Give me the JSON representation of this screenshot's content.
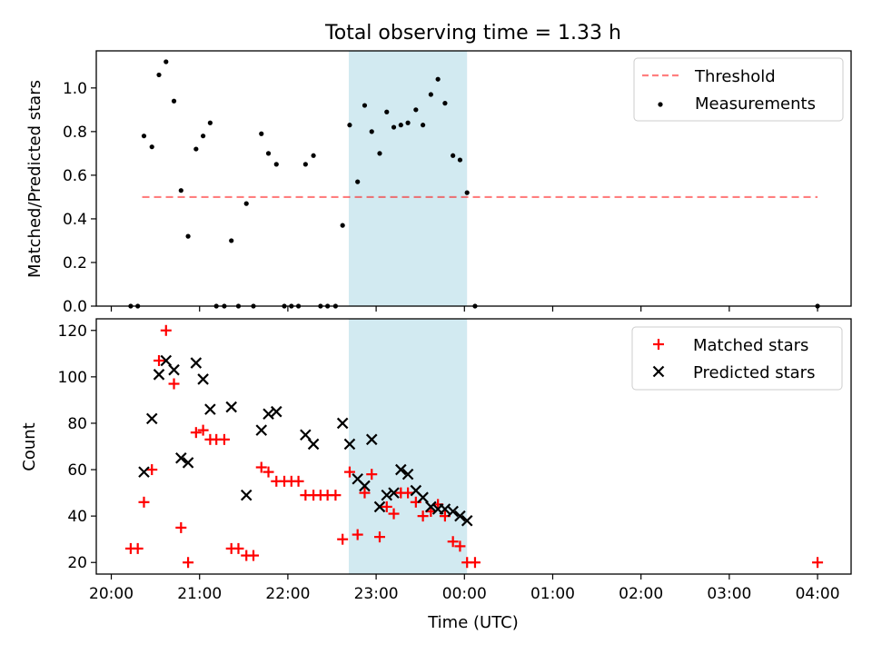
{
  "chart_data": [
    {
      "type": "scatter",
      "title": "Total observing time = 1.33 h",
      "xlabel": "",
      "ylabel": "Matched/Predicted stars",
      "ylim": [
        0,
        1.17
      ],
      "yticks": [
        "0.0",
        "0.2",
        "0.4",
        "0.6",
        "0.8",
        "1.0"
      ],
      "grid": false,
      "legend_position": "top-right",
      "highlight_span": {
        "x0": 22.69,
        "x1": 24.03,
        "color": "#add8e6"
      },
      "threshold": {
        "name": "Threshold",
        "y": 0.5,
        "x": [
          20.35,
          28.0
        ],
        "color": "#ff0000"
      },
      "series": [
        {
          "name": "Measurements",
          "color": "#000000",
          "points": [
            [
              20.22,
              0
            ],
            [
              20.3,
              0
            ],
            [
              20.37,
              0.78
            ],
            [
              20.46,
              0.73
            ],
            [
              20.54,
              1.06
            ],
            [
              20.62,
              1.12
            ],
            [
              20.71,
              0.94
            ],
            [
              20.79,
              0.53
            ],
            [
              20.87,
              0.32
            ],
            [
              20.96,
              0.72
            ],
            [
              21.04,
              0.78
            ],
            [
              21.12,
              0.84
            ],
            [
              21.19,
              0
            ],
            [
              21.28,
              0
            ],
            [
              21.36,
              0.3
            ],
            [
              21.44,
              0
            ],
            [
              21.53,
              0.47
            ],
            [
              21.61,
              0
            ],
            [
              21.7,
              0.79
            ],
            [
              21.78,
              0.7
            ],
            [
              21.87,
              0.65
            ],
            [
              21.96,
              0
            ],
            [
              22.04,
              0
            ],
            [
              22.12,
              0
            ],
            [
              22.2,
              0.65
            ],
            [
              22.29,
              0.69
            ],
            [
              22.37,
              0
            ],
            [
              22.45,
              0
            ],
            [
              22.54,
              0
            ],
            [
              22.62,
              0.37
            ],
            [
              22.7,
              0.83
            ],
            [
              22.79,
              0.57
            ],
            [
              22.87,
              0.92
            ],
            [
              22.95,
              0.8
            ],
            [
              23.04,
              0.7
            ],
            [
              23.12,
              0.89
            ],
            [
              23.2,
              0.82
            ],
            [
              23.28,
              0.83
            ],
            [
              23.36,
              0.84
            ],
            [
              23.45,
              0.9
            ],
            [
              23.53,
              0.83
            ],
            [
              23.62,
              0.97
            ],
            [
              23.7,
              1.04
            ],
            [
              23.78,
              0.93
            ],
            [
              23.87,
              0.69
            ],
            [
              23.95,
              0.67
            ],
            [
              24.03,
              0.52
            ],
            [
              24.12,
              0
            ],
            [
              28.0,
              0
            ]
          ]
        }
      ]
    },
    {
      "type": "scatter",
      "title": "",
      "xlabel": "Time (UTC)",
      "ylabel": "Count",
      "ylim": [
        15,
        125
      ],
      "yticks": [
        "20",
        "40",
        "60",
        "80",
        "100",
        "120"
      ],
      "xlim": [
        19.83,
        28.38
      ],
      "xticks": [
        "20:00",
        "21:00",
        "22:00",
        "23:00",
        "00:00",
        "01:00",
        "02:00",
        "03:00",
        "04:00"
      ],
      "grid": false,
      "legend_position": "top-right",
      "highlight_span": {
        "x0": 22.69,
        "x1": 24.03,
        "color": "#add8e6"
      },
      "series": [
        {
          "name": "Matched stars",
          "marker": "+",
          "color": "#ff0000",
          "points": [
            [
              20.22,
              26
            ],
            [
              20.3,
              26
            ],
            [
              20.37,
              46
            ],
            [
              20.46,
              60
            ],
            [
              20.54,
              107
            ],
            [
              20.62,
              120
            ],
            [
              20.71,
              97
            ],
            [
              20.79,
              35
            ],
            [
              20.87,
              20
            ],
            [
              20.96,
              76
            ],
            [
              21.04,
              77
            ],
            [
              21.12,
              73
            ],
            [
              21.19,
              73
            ],
            [
              21.28,
              73
            ],
            [
              21.36,
              26
            ],
            [
              21.44,
              26
            ],
            [
              21.53,
              23
            ],
            [
              21.61,
              23
            ],
            [
              21.7,
              61
            ],
            [
              21.78,
              59
            ],
            [
              21.87,
              55
            ],
            [
              21.96,
              55
            ],
            [
              22.04,
              55
            ],
            [
              22.12,
              55
            ],
            [
              22.2,
              49
            ],
            [
              22.29,
              49
            ],
            [
              22.37,
              49
            ],
            [
              22.45,
              49
            ],
            [
              22.54,
              49
            ],
            [
              22.62,
              30
            ],
            [
              22.7,
              59
            ],
            [
              22.79,
              32
            ],
            [
              22.87,
              50
            ],
            [
              22.95,
              58
            ],
            [
              23.04,
              31
            ],
            [
              23.12,
              44
            ],
            [
              23.2,
              41
            ],
            [
              23.28,
              50
            ],
            [
              23.36,
              50
            ],
            [
              23.45,
              46
            ],
            [
              23.53,
              40
            ],
            [
              23.62,
              42
            ],
            [
              23.7,
              45
            ],
            [
              23.78,
              40
            ],
            [
              23.87,
              29
            ],
            [
              23.95,
              27
            ],
            [
              24.03,
              20
            ],
            [
              24.12,
              20
            ],
            [
              28.0,
              20
            ]
          ]
        },
        {
          "name": "Predicted stars",
          "marker": "x",
          "color": "#000000",
          "points": [
            [
              20.37,
              59
            ],
            [
              20.46,
              82
            ],
            [
              20.54,
              101
            ],
            [
              20.62,
              107
            ],
            [
              20.71,
              103
            ],
            [
              20.79,
              65
            ],
            [
              20.87,
              63
            ],
            [
              20.96,
              106
            ],
            [
              21.04,
              99
            ],
            [
              21.12,
              86
            ],
            [
              21.36,
              87
            ],
            [
              21.53,
              49
            ],
            [
              21.7,
              77
            ],
            [
              21.78,
              84
            ],
            [
              21.87,
              85
            ],
            [
              22.2,
              75
            ],
            [
              22.29,
              71
            ],
            [
              22.62,
              80
            ],
            [
              22.7,
              71
            ],
            [
              22.79,
              56
            ],
            [
              22.87,
              53
            ],
            [
              22.95,
              73
            ],
            [
              23.04,
              44
            ],
            [
              23.12,
              49
            ],
            [
              23.2,
              50
            ],
            [
              23.28,
              60
            ],
            [
              23.36,
              58
            ],
            [
              23.45,
              51
            ],
            [
              23.53,
              48
            ],
            [
              23.62,
              44
            ],
            [
              23.7,
              43
            ],
            [
              23.78,
              43
            ],
            [
              23.87,
              42
            ],
            [
              23.95,
              40
            ],
            [
              24.03,
              38
            ]
          ]
        }
      ]
    }
  ]
}
